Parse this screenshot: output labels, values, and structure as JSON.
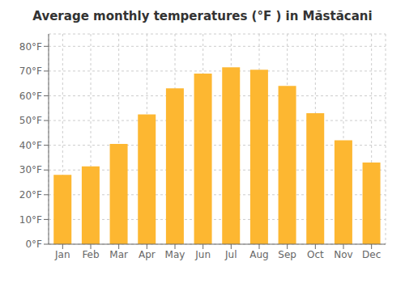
{
  "chart_data": {
    "type": "bar",
    "title": "Average monthly temperatures (°F ) in Măstăcani",
    "categories": [
      "Jan",
      "Feb",
      "Mar",
      "Apr",
      "May",
      "Jun",
      "Jul",
      "Aug",
      "Sep",
      "Oct",
      "Nov",
      "Dec"
    ],
    "values": [
      28,
      31.5,
      40.5,
      52.5,
      63,
      69,
      71.5,
      70.5,
      64,
      53,
      42,
      33
    ],
    "color": "#FDB731",
    "ylim": [
      0,
      85
    ],
    "yticks": [
      {
        "value": 0,
        "label": "0°F"
      },
      {
        "value": 10,
        "label": "10°F"
      },
      {
        "value": 20,
        "label": "20°F"
      },
      {
        "value": 30,
        "label": "30°F"
      },
      {
        "value": 40,
        "label": "40°F"
      },
      {
        "value": 50,
        "label": "50°F"
      },
      {
        "value": 60,
        "label": "60°F"
      },
      {
        "value": 70,
        "label": "70°F"
      },
      {
        "value": 80,
        "label": "80°F"
      }
    ],
    "grid": true
  }
}
